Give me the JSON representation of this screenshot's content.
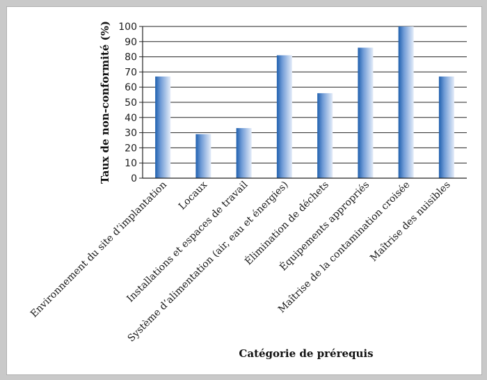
{
  "chart_data": {
    "type": "bar",
    "xlabel": "Catégorie de prérequis",
    "ylabel": "Taux de non-conformité (%)",
    "ylim": [
      0,
      100
    ],
    "yticks": [
      0,
      10,
      20,
      30,
      40,
      50,
      60,
      70,
      80,
      90,
      100
    ],
    "grid": "horizontal",
    "categories": [
      "Environnement du site d’implantation",
      "Locaux",
      "Installations et espaces de travail",
      "Système d’alimentation (air, eau et énergies)",
      "Élimination de déchets",
      "Équipements appropriés",
      "Maîtrise de la contamination croisée",
      "Maîtrise des nuisibles"
    ],
    "values": [
      67,
      29,
      33,
      81,
      56,
      86,
      100,
      67
    ],
    "colors": {
      "bar_dark": "#1f5fae",
      "bar_light": "#e4ecf9",
      "frame_bg": "#c9c9c9"
    }
  }
}
